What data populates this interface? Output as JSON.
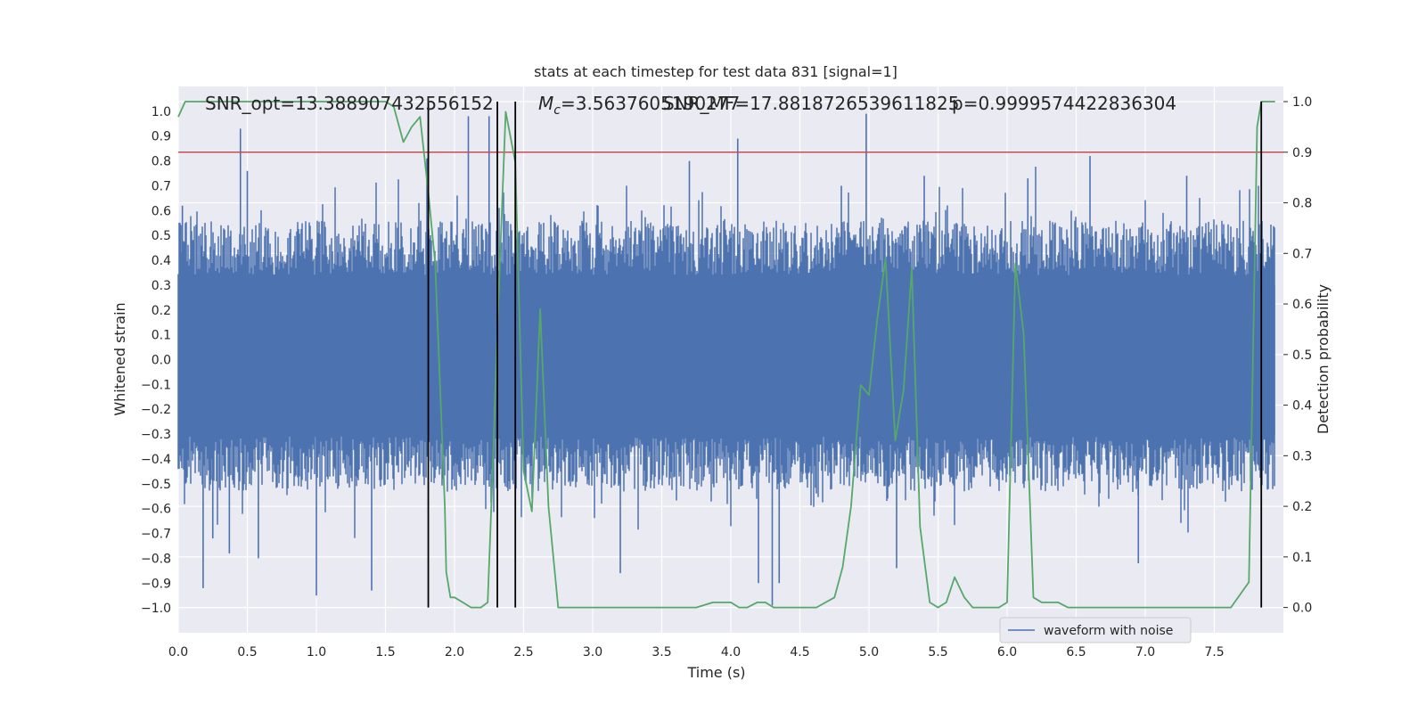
{
  "chart_data": {
    "type": "line",
    "title": "stats at each timestep for test data 831 [signal=1]",
    "xlabel": "Time (s)",
    "ylabel": "Whitened strain",
    "y2label": "Detection probability",
    "xlim": [
      0.0,
      8.0
    ],
    "ylim": [
      -1.1,
      1.1
    ],
    "y2lim": [
      -0.05,
      1.03
    ],
    "xticks": [
      "0.0",
      "0.5",
      "1.0",
      "1.5",
      "2.0",
      "2.5",
      "3.0",
      "3.5",
      "4.0",
      "4.5",
      "5.0",
      "5.5",
      "6.0",
      "6.5",
      "7.0",
      "7.5"
    ],
    "xtick_values": [
      0,
      0.5,
      1,
      1.5,
      2,
      2.5,
      3,
      3.5,
      4,
      4.5,
      5,
      5.5,
      6,
      6.5,
      7,
      7.5
    ],
    "yticks": [
      "1.0",
      "0.9",
      "0.8",
      "0.7",
      "0.6",
      "0.5",
      "0.4",
      "0.3",
      "0.2",
      "0.1",
      "0.0",
      "−0.1",
      "−0.2",
      "−0.3",
      "−0.4",
      "−0.5",
      "−0.6",
      "−0.7",
      "−0.8",
      "−0.9",
      "−1.0"
    ],
    "ytick_values": [
      1,
      0.9,
      0.8,
      0.7,
      0.6,
      0.5,
      0.4,
      0.3,
      0.2,
      0.1,
      0,
      -0.1,
      -0.2,
      -0.3,
      -0.4,
      -0.5,
      -0.6,
      -0.7,
      -0.8,
      -0.9,
      -1.0
    ],
    "y2ticks": [
      "1.0",
      "0.9",
      "0.8",
      "0.7",
      "0.6",
      "0.5",
      "0.4",
      "0.3",
      "0.2",
      "0.1",
      "0.0"
    ],
    "y2tick_values": [
      1.0,
      0.9,
      0.8,
      0.7,
      0.6,
      0.5,
      0.4,
      0.3,
      0.2,
      0.1,
      0.0
    ],
    "grid": true,
    "legend": {
      "placement": "lower-right",
      "entries": [
        "waveform with noise"
      ]
    },
    "annotations": [
      "SNR_opt=13.388907432556152",
      "$M_c$=3.5637605190277",
      "SNR_MF=17.8818726539611825",
      "p=0.9999574422836304"
    ],
    "colors": {
      "waveform": "#4c72b0",
      "probability": "#55a868",
      "threshold": "#c44e52",
      "vlines": "#000000",
      "background": "#eaeaf2",
      "grid": "#ffffff"
    },
    "series": [
      {
        "name": "waveform with noise",
        "kind": "noise-band",
        "x_range": [
          0.0,
          7.94
        ],
        "envelope_typical": [
          -0.42,
          0.45
        ],
        "peaks": [
          {
            "x": 0.03,
            "y": 0.62
          },
          {
            "x": 0.18,
            "y": -0.92
          },
          {
            "x": 0.25,
            "y": -0.72
          },
          {
            "x": 0.37,
            "y": -0.78
          },
          {
            "x": 0.45,
            "y": 0.93
          },
          {
            "x": 0.5,
            "y": 0.76
          },
          {
            "x": 0.58,
            "y": -0.8
          },
          {
            "x": 1.0,
            "y": -0.95
          },
          {
            "x": 1.4,
            "y": -0.93
          },
          {
            "x": 1.8,
            "y": 0.81
          },
          {
            "x": 2.1,
            "y": 0.98
          },
          {
            "x": 2.25,
            "y": 0.98
          },
          {
            "x": 3.2,
            "y": -0.86
          },
          {
            "x": 3.7,
            "y": 0.8
          },
          {
            "x": 4.05,
            "y": 0.89
          },
          {
            "x": 4.2,
            "y": -0.9
          },
          {
            "x": 4.3,
            "y": -0.99
          },
          {
            "x": 4.35,
            "y": -0.9
          },
          {
            "x": 4.8,
            "y": 0.7
          },
          {
            "x": 4.98,
            "y": 0.99
          },
          {
            "x": 5.2,
            "y": -0.84
          },
          {
            "x": 5.4,
            "y": 0.74
          },
          {
            "x": 6.15,
            "y": 0.73
          },
          {
            "x": 6.6,
            "y": 0.82
          },
          {
            "x": 6.95,
            "y": -0.82
          },
          {
            "x": 7.3,
            "y": 0.74
          }
        ]
      },
      {
        "name": "detection probability",
        "kind": "line",
        "x": [
          0.0,
          0.05,
          0.1,
          0.2,
          0.3,
          0.4,
          0.5,
          0.6,
          0.7,
          0.8,
          0.9,
          1.0,
          1.1,
          1.2,
          1.3,
          1.4,
          1.5,
          1.56,
          1.63,
          1.69,
          1.75,
          1.81,
          1.86,
          1.93,
          1.94,
          1.97,
          2.0,
          2.06,
          2.12,
          2.19,
          2.24,
          2.28,
          2.31,
          2.37,
          2.44,
          2.5,
          2.56,
          2.62,
          2.68,
          2.75,
          2.81,
          2.87,
          3.0,
          3.12,
          3.25,
          3.37,
          3.5,
          3.62,
          3.75,
          3.87,
          3.94,
          4.0,
          4.06,
          4.12,
          4.19,
          4.25,
          4.31,
          4.37,
          4.5,
          4.62,
          4.75,
          4.81,
          4.87,
          4.94,
          5.0,
          5.06,
          5.12,
          5.19,
          5.25,
          5.31,
          5.37,
          5.44,
          5.5,
          5.56,
          5.62,
          5.69,
          5.75,
          5.81,
          5.87,
          5.94,
          6.0,
          6.06,
          6.12,
          6.19,
          6.25,
          6.31,
          6.37,
          6.44,
          6.5,
          6.62,
          6.75,
          6.87,
          7.0,
          7.12,
          7.25,
          7.37,
          7.5,
          7.62,
          7.75,
          7.81,
          7.84,
          7.87,
          7.94
        ],
        "y": [
          0.97,
          1.0,
          1.0,
          1.0,
          1.0,
          1.0,
          1.0,
          1.0,
          1.0,
          1.0,
          1.0,
          1.0,
          1.0,
          1.0,
          1.0,
          1.0,
          1.0,
          0.99,
          0.92,
          0.95,
          0.97,
          0.82,
          0.68,
          0.2,
          0.07,
          0.02,
          0.02,
          0.01,
          0.0,
          0.0,
          0.01,
          0.3,
          0.55,
          0.98,
          0.88,
          0.27,
          0.19,
          0.59,
          0.2,
          0.0,
          0.0,
          0.0,
          0.0,
          0.0,
          0.0,
          0.0,
          0.0,
          0.0,
          0.0,
          0.01,
          0.01,
          0.01,
          0.0,
          0.0,
          0.01,
          0.01,
          0.0,
          0.0,
          0.0,
          0.0,
          0.02,
          0.08,
          0.2,
          0.44,
          0.42,
          0.57,
          0.69,
          0.33,
          0.43,
          0.67,
          0.16,
          0.01,
          0.0,
          0.01,
          0.06,
          0.02,
          0.0,
          0.0,
          0.0,
          0.0,
          0.01,
          0.68,
          0.54,
          0.02,
          0.01,
          0.01,
          0.01,
          0.0,
          0.0,
          0.0,
          0.0,
          0.0,
          0.0,
          0.0,
          0.0,
          0.0,
          0.0,
          0.0,
          0.05,
          0.95,
          1.0,
          1.0,
          1.0
        ]
      },
      {
        "name": "threshold",
        "kind": "hline",
        "axis": "right",
        "y": 0.9
      },
      {
        "name": "markers",
        "kind": "vlines",
        "x": [
          1.81,
          2.31,
          2.44,
          7.84
        ]
      }
    ]
  }
}
